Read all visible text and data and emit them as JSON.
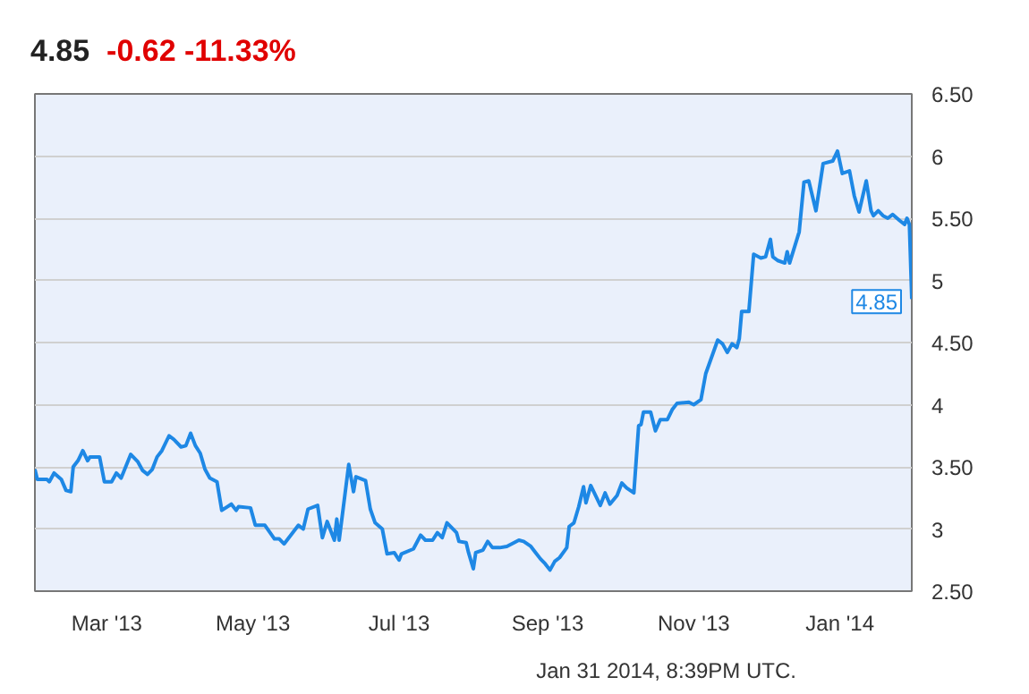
{
  "chart_data": {
    "type": "line",
    "title": "4.85",
    "subtitle": "-0.62  -11.33%",
    "x": [
      "2013-01-30",
      "2013-01-31",
      "2013-02-04",
      "2013-02-05",
      "2013-02-07",
      "2013-02-10",
      "2013-02-12",
      "2013-02-14",
      "2013-02-15",
      "2013-02-17",
      "2013-02-19",
      "2013-02-21",
      "2013-02-22",
      "2013-02-26",
      "2013-02-28",
      "2013-03-03",
      "2013-03-05",
      "2013-03-07",
      "2013-03-11",
      "2013-03-14",
      "2013-03-16",
      "2013-03-18",
      "2013-03-20",
      "2013-03-22",
      "2013-03-24",
      "2013-03-27",
      "2013-03-29",
      "2013-04-01",
      "2013-04-03",
      "2013-04-05",
      "2013-04-07",
      "2013-04-09",
      "2013-04-11",
      "2013-04-13",
      "2013-04-16",
      "2013-04-18",
      "2013-04-22",
      "2013-04-24",
      "2013-04-25",
      "2013-04-30",
      "2013-05-02",
      "2013-05-06",
      "2013-05-10",
      "2013-05-12",
      "2013-05-14",
      "2013-05-18",
      "2013-05-20",
      "2013-05-22",
      "2013-05-24",
      "2013-05-28",
      "2013-05-30",
      "2013-06-01",
      "2013-06-04",
      "2013-06-05",
      "2013-06-06",
      "2013-06-10",
      "2013-06-12",
      "2013-06-13",
      "2013-06-17",
      "2013-06-19",
      "2013-06-21",
      "2013-06-24",
      "2013-06-26",
      "2013-06-29",
      "2013-07-01",
      "2013-07-02",
      "2013-07-07",
      "2013-07-10",
      "2013-07-12",
      "2013-07-15",
      "2013-07-17",
      "2013-07-19",
      "2013-07-21",
      "2013-07-25",
      "2013-07-26",
      "2013-07-29",
      "2013-07-30",
      "2013-08-01",
      "2013-08-02",
      "2013-08-05",
      "2013-08-07",
      "2013-08-09",
      "2013-08-12",
      "2013-08-15",
      "2013-08-20",
      "2013-08-22",
      "2013-08-25",
      "2013-08-27",
      "2013-08-29",
      "2013-08-31",
      "2013-09-02",
      "2013-09-04",
      "2013-09-06",
      "2013-09-09",
      "2013-09-10",
      "2013-09-12",
      "2013-09-14",
      "2013-09-16",
      "2013-09-17",
      "2013-09-19",
      "2013-09-23",
      "2013-09-25",
      "2013-09-27",
      "2013-09-30",
      "2013-10-02",
      "2013-10-04",
      "2013-10-07",
      "2013-10-09",
      "2013-10-10",
      "2013-10-11",
      "2013-10-14",
      "2013-10-16",
      "2013-10-18",
      "2013-10-21",
      "2013-10-23",
      "2013-10-25",
      "2013-10-30",
      "2013-11-01",
      "2013-11-04",
      "2013-11-06",
      "2013-11-11",
      "2013-11-13",
      "2013-11-15",
      "2013-11-17",
      "2013-11-19",
      "2013-11-20",
      "2013-11-21",
      "2013-11-24",
      "2013-11-26",
      "2013-11-29",
      "2013-12-01",
      "2013-12-03",
      "2013-12-04",
      "2013-12-06",
      "2013-12-09",
      "2013-12-10",
      "2013-12-11",
      "2013-12-15",
      "2013-12-17",
      "2013-12-19",
      "2013-12-22",
      "2013-12-25",
      "2013-12-29",
      "2013-12-31",
      "2014-01-02",
      "2014-01-05",
      "2014-01-07",
      "2014-01-09",
      "2014-01-12",
      "2014-01-14",
      "2014-01-15",
      "2014-01-17",
      "2014-01-19",
      "2014-01-21",
      "2014-01-23",
      "2014-01-26",
      "2014-01-28",
      "2014-01-29",
      "2014-01-30",
      "2014-01-31"
    ],
    "series": [
      {
        "color": "#1e88e5",
        "values": [
          3.48,
          3.4,
          3.4,
          3.38,
          3.45,
          3.4,
          3.31,
          3.3,
          3.5,
          3.55,
          3.63,
          3.55,
          3.58,
          3.58,
          3.38,
          3.38,
          3.45,
          3.41,
          3.6,
          3.54,
          3.47,
          3.44,
          3.48,
          3.58,
          3.63,
          3.75,
          3.72,
          3.66,
          3.67,
          3.77,
          3.67,
          3.61,
          3.48,
          3.41,
          3.38,
          3.15,
          3.2,
          3.15,
          3.18,
          3.17,
          3.03,
          3.03,
          2.92,
          2.92,
          2.88,
          2.98,
          3.03,
          3.0,
          3.16,
          3.19,
          2.93,
          3.06,
          2.91,
          3.08,
          2.91,
          3.52,
          3.3,
          3.42,
          3.39,
          3.16,
          3.05,
          3.0,
          2.8,
          2.81,
          2.75,
          2.8,
          2.84,
          2.95,
          2.91,
          2.91,
          2.97,
          2.93,
          3.05,
          2.97,
          2.9,
          2.89,
          2.81,
          2.68,
          2.81,
          2.83,
          2.9,
          2.85,
          2.85,
          2.86,
          2.91,
          2.9,
          2.86,
          2.81,
          2.76,
          2.72,
          2.67,
          2.74,
          2.77,
          2.85,
          3.02,
          3.05,
          3.18,
          3.34,
          3.21,
          3.35,
          3.19,
          3.29,
          3.2,
          3.27,
          3.37,
          3.33,
          3.29,
          3.83,
          3.84,
          3.94,
          3.94,
          3.79,
          3.88,
          3.88,
          3.96,
          4.01,
          4.02,
          4.0,
          4.04,
          4.25,
          4.52,
          4.49,
          4.42,
          4.49,
          4.46,
          4.53,
          4.75,
          4.75,
          5.21,
          5.18,
          5.19,
          5.33,
          5.19,
          5.16,
          5.14,
          5.23,
          5.14,
          5.39,
          5.79,
          5.8,
          5.56,
          5.94,
          5.96,
          6.04,
          5.86,
          5.88,
          5.68,
          5.55,
          5.8,
          5.56,
          5.52,
          5.56,
          5.52,
          5.5,
          5.53,
          5.48,
          5.45,
          5.5,
          5.45,
          4.85
        ]
      }
    ],
    "xlim": [
      "2013-01-30",
      "2014-01-31"
    ],
    "xticks": [
      {
        "value": "2013-03-01",
        "label": "Mar '13"
      },
      {
        "value": "2013-05-01",
        "label": "May '13"
      },
      {
        "value": "2013-07-01",
        "label": "Jul '13"
      },
      {
        "value": "2013-09-01",
        "label": "Sep '13"
      },
      {
        "value": "2013-11-01",
        "label": "Nov '13"
      },
      {
        "value": "2014-01-01",
        "label": "Jan '14"
      }
    ],
    "ylim": [
      2.5,
      6.5
    ],
    "yticks": [
      {
        "value": 2.5,
        "label": "2.50"
      },
      3,
      {
        "value": 3.5,
        "label": "3.50"
      },
      4,
      {
        "value": 4.5,
        "label": "4.50"
      },
      5,
      {
        "value": 5.5,
        "label": "5.50"
      },
      6,
      {
        "value": 6.5,
        "label": "6.50"
      }
    ],
    "grid": true,
    "marker": "none",
    "line_style": "solid",
    "annotations": [
      {
        "text": "4.85",
        "x": "2014-01-31",
        "y": 4.85
      },
      "Jan 31 2014, 8:39PM UTC."
    ]
  }
}
